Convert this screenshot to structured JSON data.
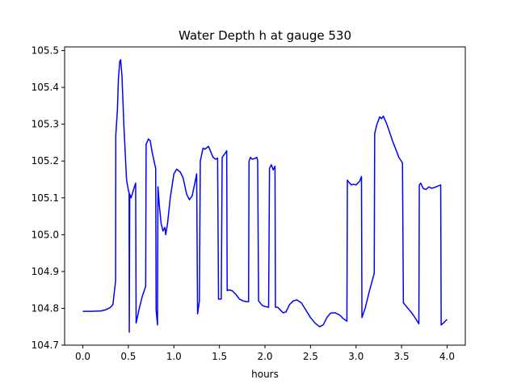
{
  "chart_data": {
    "type": "line",
    "title": "Water Depth h at gauge 530",
    "xlabel": "hours",
    "ylabel": "",
    "xlim": [
      -0.2,
      4.2
    ],
    "ylim": [
      104.7,
      105.51
    ],
    "grid": false,
    "legend": "none",
    "xticks": [
      0.0,
      0.5,
      1.0,
      1.5,
      2.0,
      2.5,
      3.0,
      3.5,
      4.0
    ],
    "xtick_labels": [
      "0.0",
      "0.5",
      "1.0",
      "1.5",
      "2.0",
      "2.5",
      "3.0",
      "3.5",
      "4.0"
    ],
    "yticks": [
      104.7,
      104.8,
      104.9,
      105.0,
      105.1,
      105.2,
      105.3,
      105.4,
      105.5
    ],
    "ytick_labels": [
      "104.7",
      "104.8",
      "104.9",
      "105.0",
      "105.1",
      "105.2",
      "105.3",
      "105.4",
      "105.5"
    ],
    "series": [
      {
        "color": "#0000ff",
        "points": [
          [
            0.0,
            104.792
          ],
          [
            0.1,
            104.792
          ],
          [
            0.2,
            104.793
          ],
          [
            0.25,
            104.796
          ],
          [
            0.3,
            104.802
          ],
          [
            0.33,
            104.81
          ],
          [
            0.36,
            104.875
          ],
          [
            0.362,
            105.27
          ],
          [
            0.38,
            105.34
          ],
          [
            0.39,
            105.42
          ],
          [
            0.405,
            105.47
          ],
          [
            0.415,
            105.475
          ],
          [
            0.43,
            105.43
          ],
          [
            0.45,
            105.3
          ],
          [
            0.48,
            105.15
          ],
          [
            0.5,
            105.12
          ],
          [
            0.508,
            105.115
          ],
          [
            0.51,
            104.735
          ],
          [
            0.515,
            105.11
          ],
          [
            0.53,
            105.1
          ],
          [
            0.56,
            105.125
          ],
          [
            0.58,
            105.14
          ],
          [
            0.585,
            104.76
          ],
          [
            0.62,
            104.8
          ],
          [
            0.65,
            104.83
          ],
          [
            0.69,
            104.86
          ],
          [
            0.695,
            105.245
          ],
          [
            0.72,
            105.26
          ],
          [
            0.74,
            105.255
          ],
          [
            0.76,
            105.225
          ],
          [
            0.8,
            105.18
          ],
          [
            0.805,
            104.795
          ],
          [
            0.82,
            104.755
          ],
          [
            0.825,
            105.13
          ],
          [
            0.84,
            105.08
          ],
          [
            0.86,
            105.03
          ],
          [
            0.88,
            105.01
          ],
          [
            0.9,
            105.02
          ],
          [
            0.91,
            105.0
          ],
          [
            0.93,
            105.03
          ],
          [
            0.96,
            105.1
          ],
          [
            1.0,
            105.165
          ],
          [
            1.03,
            105.178
          ],
          [
            1.07,
            105.17
          ],
          [
            1.1,
            105.155
          ],
          [
            1.14,
            105.11
          ],
          [
            1.17,
            105.095
          ],
          [
            1.2,
            105.105
          ],
          [
            1.23,
            105.14
          ],
          [
            1.25,
            105.165
          ],
          [
            1.26,
            104.785
          ],
          [
            1.28,
            104.82
          ],
          [
            1.29,
            105.2
          ],
          [
            1.32,
            105.235
          ],
          [
            1.34,
            105.232
          ],
          [
            1.38,
            105.24
          ],
          [
            1.41,
            105.222
          ],
          [
            1.43,
            105.21
          ],
          [
            1.46,
            105.205
          ],
          [
            1.48,
            105.208
          ],
          [
            1.49,
            104.825
          ],
          [
            1.52,
            104.825
          ],
          [
            1.53,
            105.21
          ],
          [
            1.56,
            105.22
          ],
          [
            1.58,
            105.228
          ],
          [
            1.585,
            104.848
          ],
          [
            1.6,
            104.85
          ],
          [
            1.64,
            104.848
          ],
          [
            1.68,
            104.838
          ],
          [
            1.72,
            104.825
          ],
          [
            1.76,
            104.82
          ],
          [
            1.8,
            104.818
          ],
          [
            1.82,
            104.818
          ],
          [
            1.825,
            105.2
          ],
          [
            1.84,
            105.21
          ],
          [
            1.86,
            105.205
          ],
          [
            1.89,
            105.207
          ],
          [
            1.91,
            105.21
          ],
          [
            1.92,
            105.202
          ],
          [
            1.93,
            104.82
          ],
          [
            1.97,
            104.808
          ],
          [
            2.0,
            104.805
          ],
          [
            2.04,
            104.803
          ],
          [
            2.05,
            105.18
          ],
          [
            2.07,
            105.19
          ],
          [
            2.09,
            105.176
          ],
          [
            2.11,
            105.186
          ],
          [
            2.115,
            104.803
          ],
          [
            2.14,
            104.803
          ],
          [
            2.17,
            104.795
          ],
          [
            2.2,
            104.788
          ],
          [
            2.23,
            104.79
          ],
          [
            2.27,
            104.81
          ],
          [
            2.31,
            104.82
          ],
          [
            2.35,
            104.823
          ],
          [
            2.4,
            104.815
          ],
          [
            2.45,
            104.795
          ],
          [
            2.5,
            104.775
          ],
          [
            2.55,
            104.76
          ],
          [
            2.6,
            104.75
          ],
          [
            2.64,
            104.755
          ],
          [
            2.68,
            104.775
          ],
          [
            2.72,
            104.787
          ],
          [
            2.77,
            104.788
          ],
          [
            2.82,
            104.782
          ],
          [
            2.86,
            104.772
          ],
          [
            2.9,
            104.765
          ],
          [
            2.905,
            105.148
          ],
          [
            2.93,
            105.14
          ],
          [
            2.95,
            105.135
          ],
          [
            2.97,
            105.137
          ],
          [
            3.0,
            105.135
          ],
          [
            3.04,
            105.145
          ],
          [
            3.06,
            105.158
          ],
          [
            3.065,
            104.775
          ],
          [
            3.1,
            104.8
          ],
          [
            3.15,
            104.85
          ],
          [
            3.2,
            104.895
          ],
          [
            3.205,
            105.275
          ],
          [
            3.23,
            105.3
          ],
          [
            3.26,
            105.32
          ],
          [
            3.28,
            105.315
          ],
          [
            3.3,
            105.322
          ],
          [
            3.33,
            105.305
          ],
          [
            3.36,
            105.285
          ],
          [
            3.4,
            105.255
          ],
          [
            3.44,
            105.23
          ],
          [
            3.47,
            105.21
          ],
          [
            3.51,
            105.195
          ],
          [
            3.52,
            104.815
          ],
          [
            3.57,
            104.8
          ],
          [
            3.62,
            104.785
          ],
          [
            3.66,
            104.77
          ],
          [
            3.69,
            104.758
          ],
          [
            3.695,
            105.135
          ],
          [
            3.71,
            105.14
          ],
          [
            3.74,
            105.125
          ],
          [
            3.77,
            105.123
          ],
          [
            3.8,
            105.13
          ],
          [
            3.83,
            105.126
          ],
          [
            3.86,
            105.128
          ],
          [
            3.9,
            105.132
          ],
          [
            3.93,
            105.135
          ],
          [
            3.935,
            104.755
          ],
          [
            3.96,
            104.76
          ],
          [
            3.98,
            104.765
          ],
          [
            4.0,
            104.77
          ]
        ]
      }
    ]
  }
}
